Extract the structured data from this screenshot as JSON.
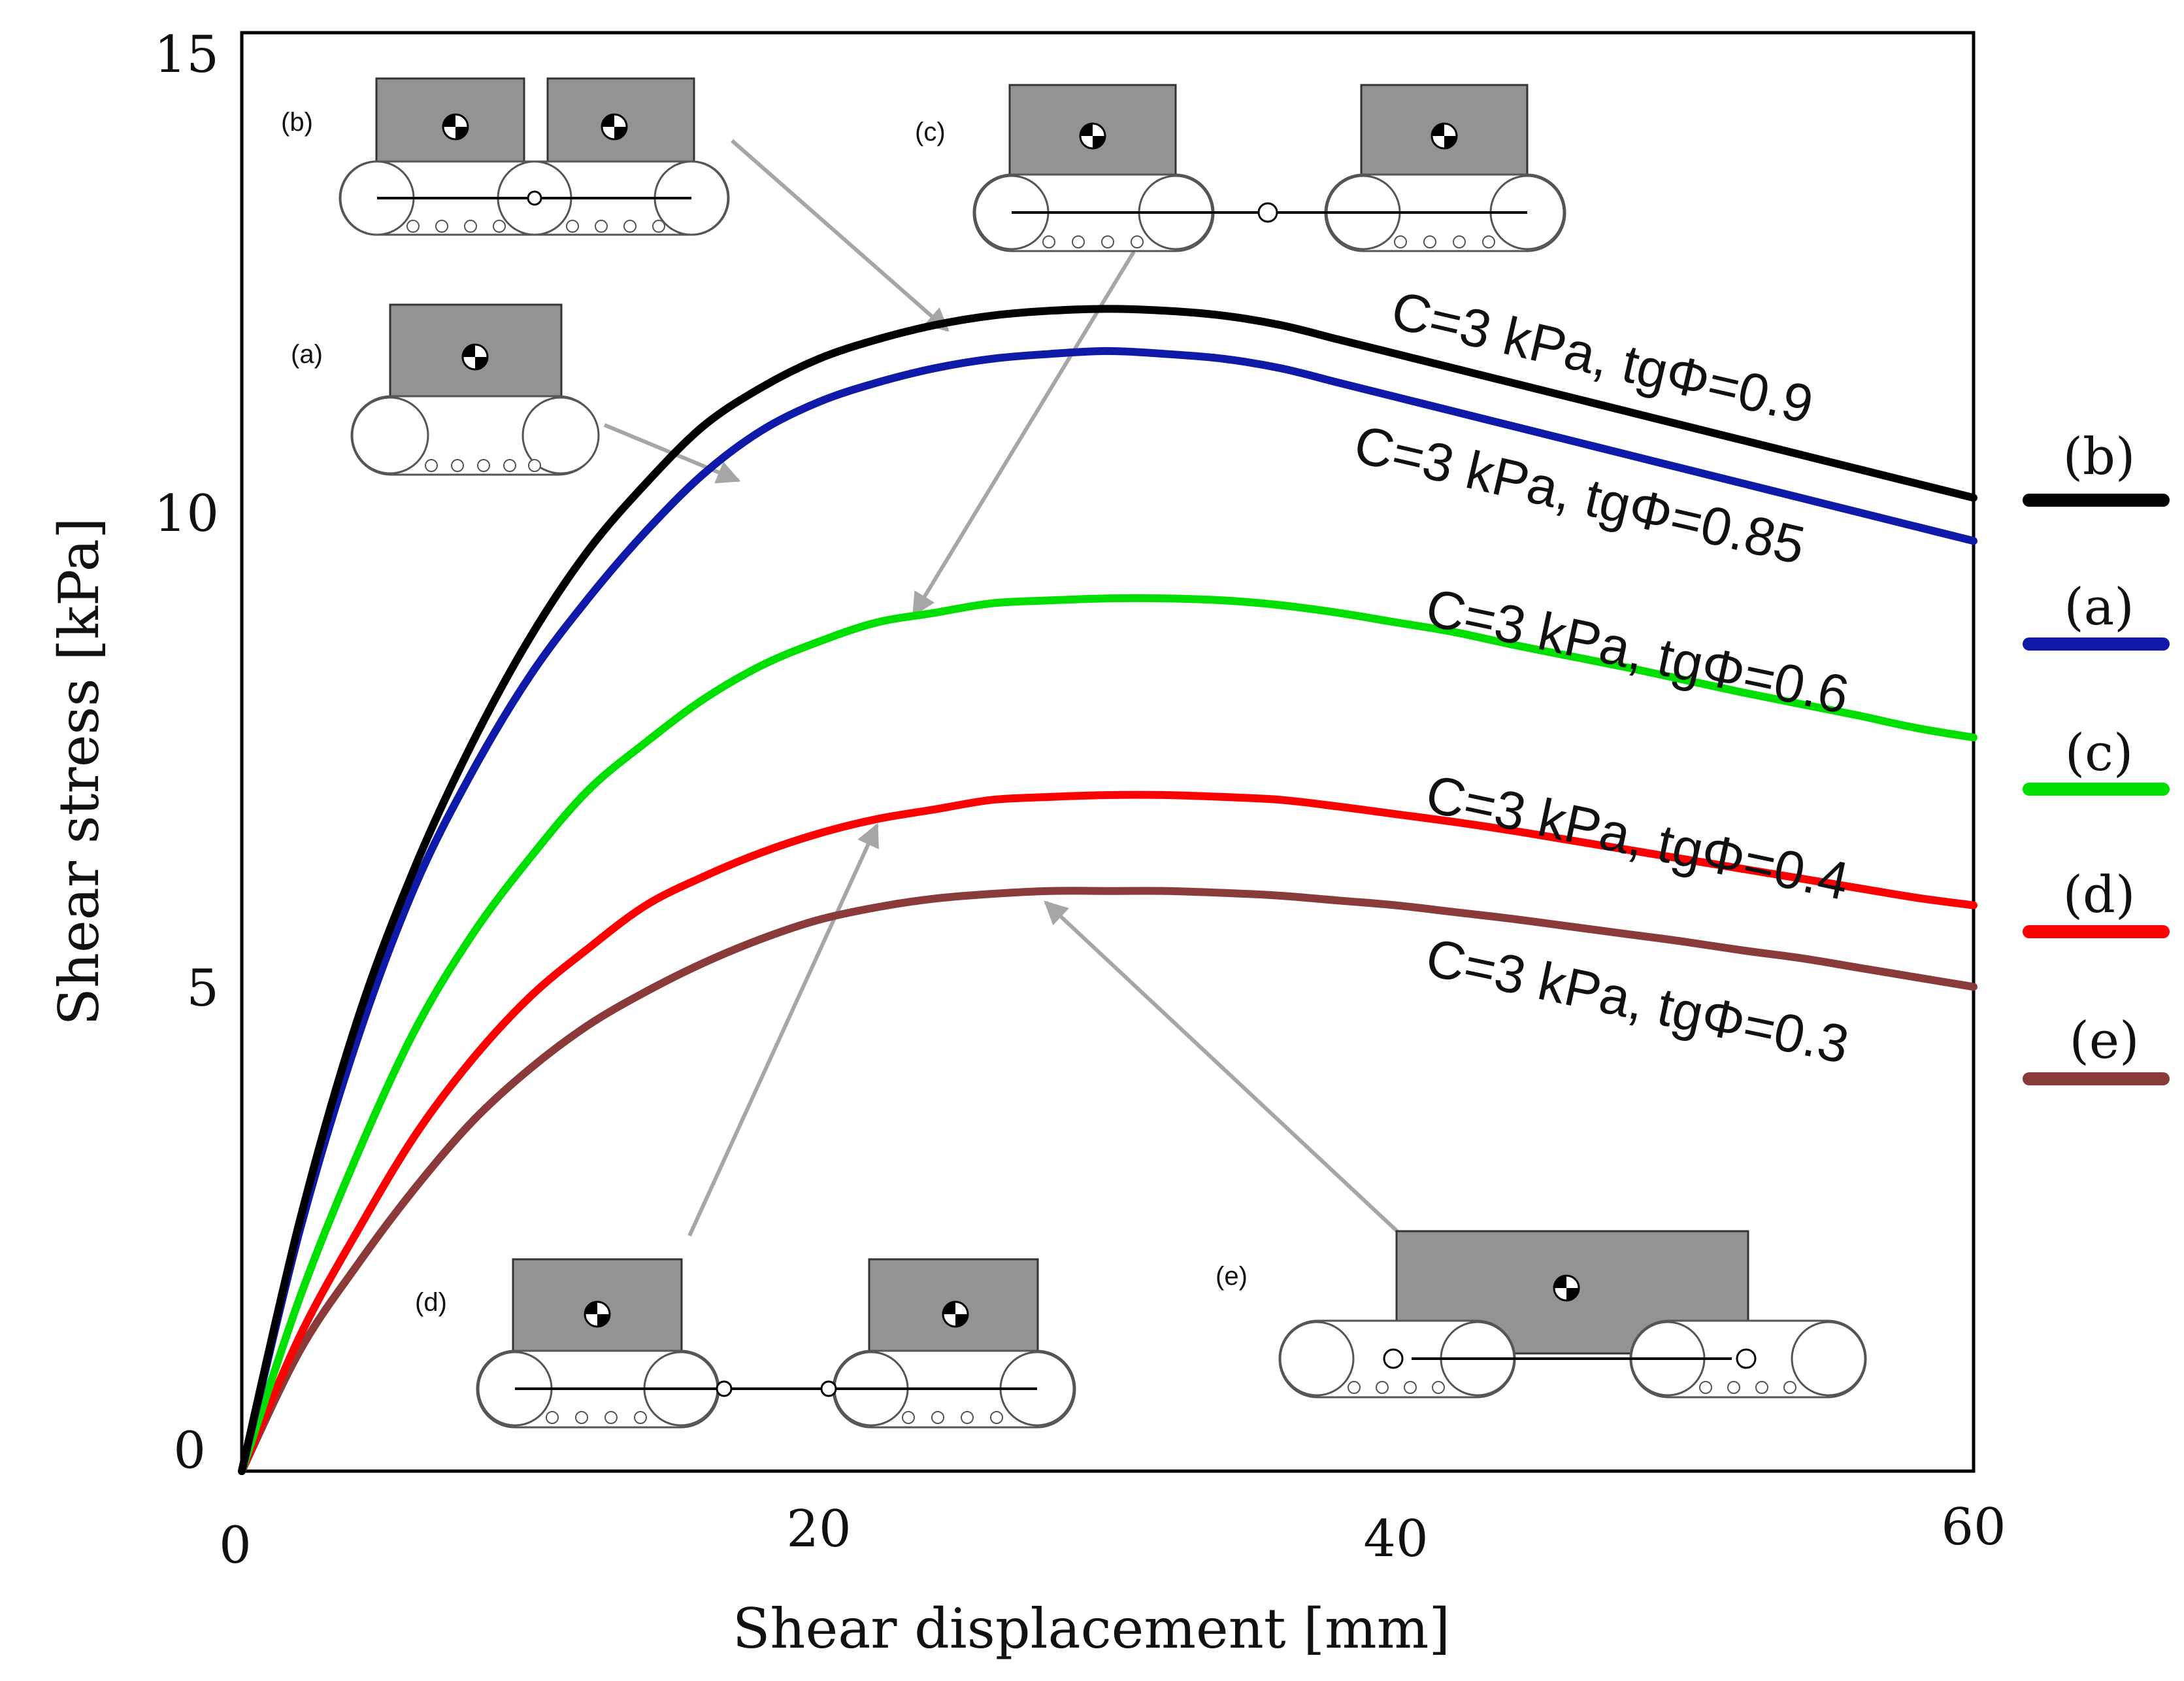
{
  "chart_data": {
    "type": "line",
    "title": "",
    "xlabel": "Shear displacement [mm]",
    "ylabel": "Shear stress [kPa]",
    "xlim": [
      0,
      60
    ],
    "ylim": [
      0,
      15
    ],
    "xticks": [
      0,
      20,
      40,
      60
    ],
    "yticks": [
      0,
      5,
      10,
      15
    ],
    "x_tick_labels": [
      "0",
      "20",
      "40",
      "60"
    ],
    "y_tick_labels": [
      "0",
      "5",
      "10",
      "15"
    ],
    "grid": false,
    "x": [
      0,
      2,
      4,
      6,
      8,
      10,
      12,
      14,
      16,
      18,
      20,
      22,
      24,
      26,
      28,
      30,
      32,
      34,
      36,
      38,
      40,
      42,
      44,
      46,
      48,
      50,
      52,
      54,
      56,
      58,
      60
    ],
    "series": [
      {
        "name": "(b)",
        "color": "#000000",
        "annotation": "C=3 kPa, tgΦ=0.9",
        "values": [
          0,
          2.6,
          4.7,
          6.3,
          7.6,
          8.7,
          9.6,
          10.3,
          10.9,
          11.3,
          11.6,
          11.8,
          11.95,
          12.05,
          12.1,
          12.12,
          12.1,
          12.05,
          11.95,
          11.8,
          11.65,
          11.5,
          11.35,
          11.2,
          11.05,
          10.9,
          10.75,
          10.6,
          10.45,
          10.3,
          10.15
        ]
      },
      {
        "name": "(a)",
        "color": "#0f1aa8",
        "annotation": "C=3 kPa, tgΦ=0.85",
        "values": [
          0,
          2.5,
          4.5,
          6.1,
          7.3,
          8.3,
          9.1,
          9.8,
          10.4,
          10.85,
          11.15,
          11.35,
          11.5,
          11.6,
          11.65,
          11.68,
          11.65,
          11.6,
          11.5,
          11.35,
          11.2,
          11.05,
          10.9,
          10.75,
          10.6,
          10.45,
          10.3,
          10.15,
          10.0,
          9.85,
          9.7
        ]
      },
      {
        "name": "(c)",
        "color": "#00e000",
        "annotation": "C=3 kPa, tgΦ=0.6",
        "values": [
          0,
          1.8,
          3.3,
          4.6,
          5.6,
          6.4,
          7.1,
          7.6,
          8.05,
          8.4,
          8.65,
          8.85,
          8.95,
          9.05,
          9.08,
          9.1,
          9.1,
          9.08,
          9.03,
          8.95,
          8.85,
          8.75,
          8.62,
          8.5,
          8.38,
          8.25,
          8.12,
          8.0,
          7.88,
          7.75,
          7.65
        ]
      },
      {
        "name": "(d)",
        "color": "#ff0000",
        "annotation": "C=3 kPa, tgΦ=0.4",
        "values": [
          0,
          1.4,
          2.5,
          3.5,
          4.3,
          4.95,
          5.45,
          5.9,
          6.2,
          6.45,
          6.65,
          6.8,
          6.9,
          7.0,
          7.03,
          7.05,
          7.05,
          7.03,
          7.0,
          6.93,
          6.85,
          6.77,
          6.68,
          6.58,
          6.48,
          6.38,
          6.28,
          6.18,
          6.08,
          5.98,
          5.9
        ]
      },
      {
        "name": "(e)",
        "color": "#8b3a3a",
        "annotation": "C=3 kPa, tgΦ=0.3",
        "values": [
          0,
          1.25,
          2.15,
          2.95,
          3.65,
          4.2,
          4.65,
          5.0,
          5.3,
          5.55,
          5.75,
          5.88,
          5.97,
          6.02,
          6.05,
          6.05,
          6.05,
          6.03,
          6.0,
          5.95,
          5.9,
          5.83,
          5.76,
          5.68,
          5.6,
          5.52,
          5.43,
          5.35,
          5.25,
          5.15,
          5.05
        ]
      }
    ],
    "legend": {
      "position": "right",
      "entries": [
        {
          "label": "(b)",
          "color": "#000000"
        },
        {
          "label": "(a)",
          "color": "#0f1aa8"
        },
        {
          "label": "(c)",
          "color": "#00e000"
        },
        {
          "label": "(d)",
          "color": "#ff0000"
        },
        {
          "label": "(e)",
          "color": "#8b3a3a"
        }
      ]
    },
    "insets": [
      {
        "label": "(b)",
        "target_series": "(b)",
        "target_x": 25
      },
      {
        "label": "(a)",
        "target_series": "(a)",
        "target_x": 17
      },
      {
        "label": "(c)",
        "target_series": "(c)",
        "target_x": 23
      },
      {
        "label": "(d)",
        "target_series": "(d)",
        "target_x": 22
      },
      {
        "label": "(e)",
        "target_series": "(e)",
        "target_x": 28
      }
    ]
  },
  "colors": {
    "axis": "#000000",
    "arrow": "#a6a6a6",
    "vehicle_body": "#939393",
    "track_outline": "#555555"
  }
}
